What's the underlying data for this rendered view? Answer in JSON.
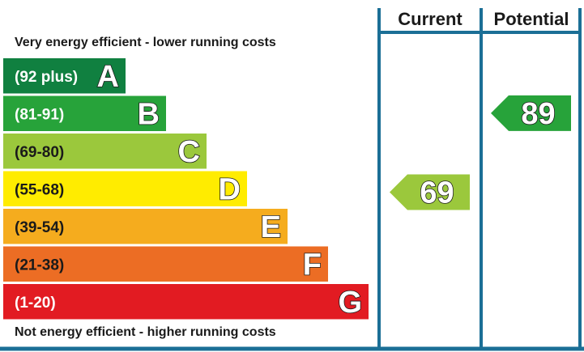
{
  "chart_data": {
    "type": "bar",
    "top_caption": "Very energy efficient - lower running costs",
    "bottom_caption": "Not energy efficient - higher running costs",
    "columns": {
      "current": "Current",
      "potential": "Potential"
    },
    "bands": [
      {
        "range": "(92 plus)",
        "letter": "A",
        "min": 92,
        "max": 100,
        "color": "#108040",
        "text_color": "#ffffff"
      },
      {
        "range": "(81-91)",
        "letter": "B",
        "min": 81,
        "max": 91,
        "color": "#27a33a",
        "text_color": "#ffffff"
      },
      {
        "range": "(69-80)",
        "letter": "C",
        "min": 69,
        "max": 80,
        "color": "#9bc83c",
        "text_color": "#1a1a1a"
      },
      {
        "range": "(55-68)",
        "letter": "D",
        "min": 55,
        "max": 68,
        "color": "#ffec00",
        "text_color": "#1a1a1a"
      },
      {
        "range": "(39-54)",
        "letter": "E",
        "min": 39,
        "max": 54,
        "color": "#f5ac1e",
        "text_color": "#1a1a1a"
      },
      {
        "range": "(21-38)",
        "letter": "F",
        "min": 21,
        "max": 38,
        "color": "#ec6d24",
        "text_color": "#1a1a1a"
      },
      {
        "range": "(1-20)",
        "letter": "G",
        "min": 1,
        "max": 20,
        "color": "#e21b22",
        "text_color": "#ffffff"
      }
    ],
    "ratings": [
      {
        "column": "current",
        "value": 69,
        "band": "C",
        "color": "#9bc83c"
      },
      {
        "column": "potential",
        "value": 89,
        "band": "B",
        "color": "#27a33a"
      }
    ],
    "frame_color": "#1b6f96"
  }
}
